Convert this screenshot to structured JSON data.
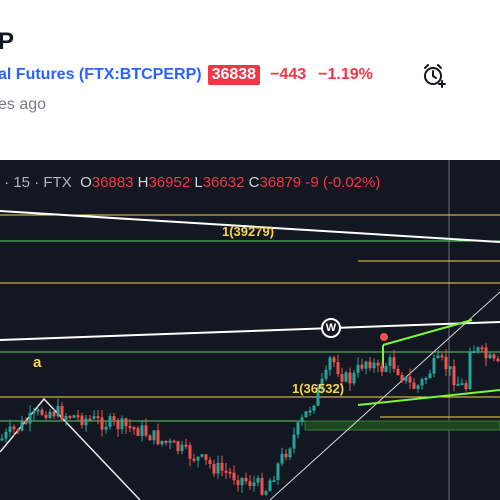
{
  "header": {
    "title_fragment": "P",
    "exchange_fragment": "al Futures",
    "ticker": "FTX:BTCPERP",
    "price": "36838",
    "change": "−443",
    "change_pct": "−1.19%",
    "time_fragment": "es ago",
    "alarm_icon": "alarm-clock-plus-icon"
  },
  "chart": {
    "interval": "15",
    "exchange": "FTX",
    "ohlc": {
      "open_label": "O",
      "open": "36883",
      "high_label": "H",
      "high": "36952",
      "low_label": "L",
      "low": "36632",
      "close_label": "C",
      "close": "36879",
      "change": "-9 (-0.02%)"
    },
    "labels": {
      "level_high": "1(39279)",
      "level_low": "1(36532)",
      "wave_a": "a",
      "wave_w": "W"
    },
    "colors": {
      "background": "#131722",
      "bull": "#26a69a",
      "bear": "#ef5350",
      "green_line": "#7cf53a",
      "yellow_line": "#f7d44a",
      "white_line": "#ffffff"
    }
  }
}
